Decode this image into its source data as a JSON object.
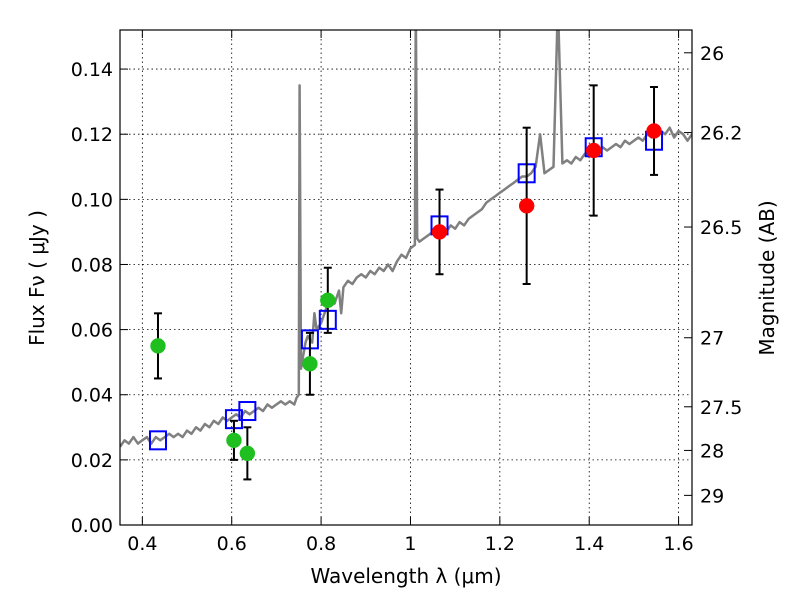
{
  "chart_data": {
    "type": "scatter",
    "title": "",
    "xlabel": "Wavelength  λ (μm)",
    "ylabel": "Flux  Fν  ( μJy )",
    "ylabel_right": "Magnitude (AB)",
    "xlim": [
      0.35,
      1.63
    ],
    "ylim": [
      0.0,
      0.152
    ],
    "grid": true,
    "x_ticks": [
      0.4,
      0.6,
      0.8,
      1.0,
      1.2,
      1.4,
      1.6
    ],
    "x_tick_labels": [
      "0.4",
      "0.6",
      "0.8",
      "1",
      "1.2",
      "1.4",
      "1.6"
    ],
    "y_ticks": [
      0.0,
      0.02,
      0.04,
      0.06,
      0.08,
      0.1,
      0.12,
      0.14
    ],
    "y_tick_labels": [
      "0.00",
      "0.02",
      "0.04",
      "0.06",
      "0.08",
      "0.10",
      "0.12",
      "0.14"
    ],
    "right_ticks": [
      {
        "label": "26",
        "flux": 0.145
      },
      {
        "label": "26.2",
        "flux": 0.1205
      },
      {
        "label": "26.5",
        "flux": 0.0915
      },
      {
        "label": "27",
        "flux": 0.0575
      },
      {
        "label": "27.5",
        "flux": 0.0363
      },
      {
        "label": "28",
        "flux": 0.0229
      },
      {
        "label": "29",
        "flux": 0.0091
      }
    ],
    "model_spectrum": {
      "color": "#808080",
      "points": [
        [
          0.35,
          0.024
        ],
        [
          0.36,
          0.026
        ],
        [
          0.37,
          0.025
        ],
        [
          0.38,
          0.027
        ],
        [
          0.39,
          0.025
        ],
        [
          0.4,
          0.026
        ],
        [
          0.41,
          0.027
        ],
        [
          0.42,
          0.025
        ],
        [
          0.43,
          0.027
        ],
        [
          0.44,
          0.026
        ],
        [
          0.45,
          0.027
        ],
        [
          0.46,
          0.028
        ],
        [
          0.47,
          0.027
        ],
        [
          0.48,
          0.028
        ],
        [
          0.49,
          0.027
        ],
        [
          0.5,
          0.029
        ],
        [
          0.51,
          0.028
        ],
        [
          0.52,
          0.03
        ],
        [
          0.53,
          0.029
        ],
        [
          0.54,
          0.031
        ],
        [
          0.55,
          0.03
        ],
        [
          0.56,
          0.032
        ],
        [
          0.57,
          0.031
        ],
        [
          0.58,
          0.033
        ],
        [
          0.59,
          0.032
        ],
        [
          0.6,
          0.033
        ],
        [
          0.61,
          0.034
        ],
        [
          0.62,
          0.033
        ],
        [
          0.63,
          0.035
        ],
        [
          0.64,
          0.034
        ],
        [
          0.65,
          0.035
        ],
        [
          0.66,
          0.036
        ],
        [
          0.67,
          0.035
        ],
        [
          0.68,
          0.037
        ],
        [
          0.69,
          0.036
        ],
        [
          0.7,
          0.037
        ],
        [
          0.71,
          0.038
        ],
        [
          0.72,
          0.037
        ],
        [
          0.73,
          0.038
        ],
        [
          0.74,
          0.037
        ],
        [
          0.745,
          0.039
        ],
        [
          0.75,
          0.04
        ],
        [
          0.752,
          0.135
        ],
        [
          0.755,
          0.048
        ],
        [
          0.76,
          0.052
        ],
        [
          0.765,
          0.056
        ],
        [
          0.77,
          0.058
        ],
        [
          0.78,
          0.056
        ],
        [
          0.785,
          0.065
        ],
        [
          0.79,
          0.06
        ],
        [
          0.8,
          0.062
        ],
        [
          0.81,
          0.066
        ],
        [
          0.82,
          0.07
        ],
        [
          0.83,
          0.068
        ],
        [
          0.84,
          0.072
        ],
        [
          0.845,
          0.065
        ],
        [
          0.85,
          0.073
        ],
        [
          0.86,
          0.075
        ],
        [
          0.87,
          0.074
        ],
        [
          0.88,
          0.076
        ],
        [
          0.89,
          0.077
        ],
        [
          0.9,
          0.076
        ],
        [
          0.91,
          0.078
        ],
        [
          0.92,
          0.077
        ],
        [
          0.93,
          0.079
        ],
        [
          0.94,
          0.078
        ],
        [
          0.95,
          0.08
        ],
        [
          0.96,
          0.078
        ],
        [
          0.97,
          0.081
        ],
        [
          0.98,
          0.083
        ],
        [
          0.99,
          0.082
        ],
        [
          1.0,
          0.085
        ],
        [
          1.01,
          0.086
        ],
        [
          1.012,
          0.16
        ],
        [
          1.015,
          0.088
        ],
        [
          1.02,
          0.087
        ],
        [
          1.03,
          0.088
        ],
        [
          1.04,
          0.089
        ],
        [
          1.05,
          0.09
        ],
        [
          1.06,
          0.089
        ],
        [
          1.07,
          0.091
        ],
        [
          1.08,
          0.09
        ],
        [
          1.09,
          0.092
        ],
        [
          1.1,
          0.091
        ],
        [
          1.11,
          0.093
        ],
        [
          1.12,
          0.092
        ],
        [
          1.13,
          0.094
        ],
        [
          1.14,
          0.095
        ],
        [
          1.15,
          0.096
        ],
        [
          1.16,
          0.097
        ],
        [
          1.17,
          0.099
        ],
        [
          1.18,
          0.1
        ],
        [
          1.19,
          0.101
        ],
        [
          1.2,
          0.102
        ],
        [
          1.21,
          0.103
        ],
        [
          1.22,
          0.104
        ],
        [
          1.23,
          0.105
        ],
        [
          1.24,
          0.106
        ],
        [
          1.25,
          0.107
        ],
        [
          1.26,
          0.107
        ],
        [
          1.27,
          0.108
        ],
        [
          1.28,
          0.11
        ],
        [
          1.29,
          0.12
        ],
        [
          1.3,
          0.108
        ],
        [
          1.31,
          0.109
        ],
        [
          1.32,
          0.11
        ],
        [
          1.33,
          0.16
        ],
        [
          1.34,
          0.111
        ],
        [
          1.35,
          0.112
        ],
        [
          1.36,
          0.111
        ],
        [
          1.37,
          0.113
        ],
        [
          1.38,
          0.112
        ],
        [
          1.39,
          0.114
        ],
        [
          1.4,
          0.113
        ],
        [
          1.41,
          0.115
        ],
        [
          1.42,
          0.114
        ],
        [
          1.43,
          0.116
        ],
        [
          1.44,
          0.115
        ],
        [
          1.45,
          0.116
        ],
        [
          1.46,
          0.117
        ],
        [
          1.47,
          0.116
        ],
        [
          1.48,
          0.118
        ],
        [
          1.49,
          0.117
        ],
        [
          1.5,
          0.118
        ],
        [
          1.51,
          0.119
        ],
        [
          1.52,
          0.118
        ],
        [
          1.53,
          0.12
        ],
        [
          1.54,
          0.119
        ],
        [
          1.55,
          0.12
        ],
        [
          1.56,
          0.121
        ],
        [
          1.57,
          0.12
        ],
        [
          1.58,
          0.122
        ],
        [
          1.59,
          0.119
        ],
        [
          1.6,
          0.121
        ],
        [
          1.61,
          0.12
        ],
        [
          1.62,
          0.118
        ],
        [
          1.63,
          0.12
        ]
      ]
    },
    "series": [
      {
        "marker": "circle",
        "color": "#1fbf1f",
        "points": [
          {
            "x": 0.435,
            "y": 0.055,
            "yerr": 0.01
          },
          {
            "x": 0.605,
            "y": 0.026,
            "yerr": 0.006
          },
          {
            "x": 0.635,
            "y": 0.022,
            "yerr": 0.008
          },
          {
            "x": 0.775,
            "y": 0.0495,
            "yerr": 0.0095
          },
          {
            "x": 0.815,
            "y": 0.069,
            "yerr": 0.01
          }
        ]
      },
      {
        "marker": "circle",
        "color": "#ff0000",
        "points": [
          {
            "x": 1.065,
            "y": 0.09,
            "yerr": 0.013
          },
          {
            "x": 1.26,
            "y": 0.098,
            "yerr": 0.024
          },
          {
            "x": 1.41,
            "y": 0.115,
            "yerr": 0.02
          },
          {
            "x": 1.545,
            "y": 0.121,
            "yerr": 0.0135
          }
        ]
      },
      {
        "marker": "open-square",
        "color": "#0000ff",
        "points": [
          {
            "x": 0.435,
            "y": 0.026
          },
          {
            "x": 0.605,
            "y": 0.0325
          },
          {
            "x": 0.635,
            "y": 0.035
          },
          {
            "x": 0.775,
            "y": 0.057
          },
          {
            "x": 0.815,
            "y": 0.063
          },
          {
            "x": 1.065,
            "y": 0.092
          },
          {
            "x": 1.26,
            "y": 0.108
          },
          {
            "x": 1.41,
            "y": 0.116
          },
          {
            "x": 1.545,
            "y": 0.118
          }
        ]
      }
    ]
  }
}
